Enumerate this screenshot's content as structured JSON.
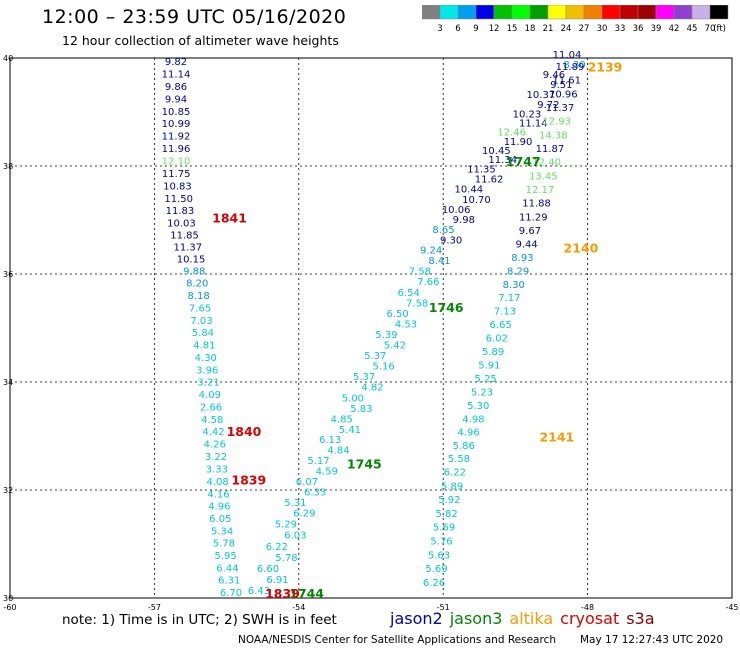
{
  "title": "12:00 – 23:59 UTC 05/16/2020",
  "subtitle": "12 hour collection of altimeter wave heights",
  "colorbar": {
    "unit": "(ft)",
    "colors": [
      "#808080",
      "#00e8e8",
      "#00a0f0",
      "#0000e8",
      "#00c000",
      "#00ff00",
      "#00a000",
      "#ffff00",
      "#f0c000",
      "#f08000",
      "#ff0000",
      "#c00000",
      "#a00000",
      "#ff00ff",
      "#9040d0",
      "#c8b0e8",
      "#000000"
    ],
    "labels": [
      "3",
      "6",
      "9",
      "12",
      "15",
      "18",
      "21",
      "24",
      "27",
      "30",
      "33",
      "36",
      "39",
      "42",
      "45",
      "70"
    ]
  },
  "axes": {
    "x_ticks": [
      "-60",
      "-57",
      "-54",
      "-51",
      "-48",
      "-45"
    ],
    "y_ticks": [
      "40",
      "38",
      "36",
      "34",
      "32",
      "30"
    ],
    "lon_range": [
      -60,
      -45
    ],
    "lat_range": [
      30,
      40
    ],
    "grid": "dashed"
  },
  "satellite_colors": {
    "jason2": "#0000cc",
    "jason3": "#008800",
    "altika": "#ff9900",
    "cryosat": "#dd0000",
    "s3a": "#880000"
  },
  "height_colors": {
    "cyan": "#00c8dc",
    "blue": "#0096e6",
    "navy": "#0000a0",
    "lgreen": "#66e066"
  },
  "tracks": [
    {
      "values": [
        [
          "9.82",
          "navy"
        ],
        [
          "11.14",
          "navy"
        ],
        [
          "9.86",
          "navy"
        ],
        [
          "9.94",
          "navy"
        ],
        [
          "10.85",
          "navy"
        ],
        [
          "10.99",
          "navy"
        ],
        [
          "11.92",
          "navy"
        ],
        [
          "11.96",
          "navy"
        ],
        [
          "12.10",
          "lgreen"
        ],
        [
          "11.75",
          "navy"
        ],
        [
          "10.83",
          "navy"
        ],
        [
          "11.50",
          "navy"
        ],
        [
          "11.83",
          "navy"
        ],
        [
          "10.03",
          "navy"
        ],
        [
          "11.85",
          "navy"
        ],
        [
          "11.37",
          "navy"
        ],
        [
          "10.15",
          "navy"
        ],
        [
          "9.88",
          "blue"
        ],
        [
          "8.20",
          "blue"
        ],
        [
          "8.18",
          "blue"
        ],
        [
          "7.65",
          "cyan"
        ],
        [
          "7.03",
          "cyan"
        ],
        [
          "5.84",
          "cyan"
        ],
        [
          "4.81",
          "cyan"
        ],
        [
          "4.30",
          "cyan"
        ],
        [
          "3.96",
          "cyan"
        ],
        [
          "3.21",
          "cyan"
        ],
        [
          "4.09",
          "cyan"
        ],
        [
          "2.66",
          "cyan"
        ],
        [
          "4.58",
          "cyan"
        ],
        [
          "4.42",
          "cyan"
        ],
        [
          "4.26",
          "cyan"
        ],
        [
          "3.22",
          "cyan"
        ],
        [
          "3.33",
          "cyan"
        ],
        [
          "4.08",
          "cyan"
        ],
        [
          "4.16",
          "cyan"
        ],
        [
          "4.96",
          "cyan"
        ],
        [
          "6.05",
          "cyan"
        ],
        [
          "5.34",
          "cyan"
        ],
        [
          "5.78",
          "cyan"
        ],
        [
          "5.95",
          "cyan"
        ],
        [
          "6.44",
          "cyan"
        ],
        [
          "6.31",
          "cyan"
        ],
        [
          "6.70",
          "cyan"
        ]
      ]
    },
    {
      "values": [
        [
          "6.43",
          "cyan"
        ],
        [
          "6.91",
          "cyan"
        ],
        [
          "6.60",
          "cyan"
        ],
        [
          "5.78",
          "cyan"
        ],
        [
          "6.22",
          "cyan"
        ],
        [
          "6.03",
          "cyan"
        ],
        [
          "5.29",
          "cyan"
        ],
        [
          "6.29",
          "cyan"
        ],
        [
          "5.31",
          "cyan"
        ],
        [
          "6.33",
          "cyan"
        ],
        [
          "6.07",
          "cyan"
        ],
        [
          "4.59",
          "cyan"
        ],
        [
          "5.17",
          "cyan"
        ],
        [
          "4.84",
          "cyan"
        ],
        [
          "6.13",
          "cyan"
        ],
        [
          "5.41",
          "cyan"
        ],
        [
          "4.85",
          "cyan"
        ],
        [
          "5.83",
          "cyan"
        ],
        [
          "5.00",
          "cyan"
        ],
        [
          "4.82",
          "cyan"
        ],
        [
          "5.37",
          "cyan"
        ],
        [
          "5.16",
          "cyan"
        ],
        [
          "5.37",
          "cyan"
        ],
        [
          "5.42",
          "cyan"
        ],
        [
          "5.39",
          "cyan"
        ],
        [
          "4.53",
          "cyan"
        ],
        [
          "6.50",
          "cyan"
        ],
        [
          "7.58",
          "cyan"
        ],
        [
          "6.54",
          "cyan"
        ],
        [
          "7.66",
          "cyan"
        ],
        [
          "7.58",
          "cyan"
        ],
        [
          "8.41",
          "blue"
        ],
        [
          "9.24",
          "blue"
        ],
        [
          "9.30",
          "navy"
        ],
        [
          "8.65",
          "blue"
        ],
        [
          "9.98",
          "navy"
        ],
        [
          "10.06",
          "navy"
        ],
        [
          "10.70",
          "navy"
        ],
        [
          "10.44",
          "navy"
        ],
        [
          "11.62",
          "navy"
        ],
        [
          "11.35",
          "navy"
        ],
        [
          "11.34",
          "navy"
        ],
        [
          "10.45",
          "navy"
        ],
        [
          "11.90",
          "navy"
        ],
        [
          "12.46",
          "lgreen"
        ],
        [
          "11.14",
          "navy"
        ],
        [
          "10.23",
          "navy"
        ],
        [
          "9.72",
          "navy"
        ],
        [
          "10.37",
          "navy"
        ],
        [
          "9.51",
          "navy"
        ],
        [
          "9.46",
          "navy"
        ],
        [
          "8.30",
          "blue"
        ],
        [
          "11.04",
          "navy"
        ]
      ]
    },
    {
      "values": [
        [
          "11.89",
          "navy"
        ],
        [
          "11.61",
          "navy"
        ],
        [
          "10.96",
          "navy"
        ],
        [
          "11.37",
          "navy"
        ],
        [
          "12.93",
          "lgreen"
        ],
        [
          "14.38",
          "lgreen"
        ],
        [
          "11.87",
          "navy"
        ],
        [
          "12.40",
          "lgreen"
        ],
        [
          "13.45",
          "lgreen"
        ],
        [
          "12.17",
          "lgreen"
        ],
        [
          "11.88",
          "navy"
        ],
        [
          "11.29",
          "navy"
        ],
        [
          "9.67",
          "navy"
        ],
        [
          "9.44",
          "navy"
        ],
        [
          "8.93",
          "blue"
        ],
        [
          "8.29",
          "blue"
        ],
        [
          "8.30",
          "blue"
        ],
        [
          "7.17",
          "cyan"
        ],
        [
          "7.13",
          "cyan"
        ],
        [
          "6.65",
          "cyan"
        ],
        [
          "6.02",
          "cyan"
        ],
        [
          "5.89",
          "cyan"
        ],
        [
          "5.91",
          "cyan"
        ],
        [
          "5.25",
          "cyan"
        ],
        [
          "5.23",
          "cyan"
        ],
        [
          "5.30",
          "cyan"
        ],
        [
          "4.98",
          "cyan"
        ],
        [
          "4.96",
          "cyan"
        ],
        [
          "5.86",
          "cyan"
        ],
        [
          "5.58",
          "cyan"
        ],
        [
          "6.22",
          "cyan"
        ],
        [
          "5.89",
          "cyan"
        ],
        [
          "5.92",
          "cyan"
        ],
        [
          "5.82",
          "cyan"
        ],
        [
          "5.69",
          "cyan"
        ],
        [
          "5.76",
          "cyan"
        ],
        [
          "5.63",
          "cyan"
        ],
        [
          "5.69",
          "cyan"
        ],
        [
          "6.26",
          "cyan"
        ]
      ]
    }
  ],
  "time_labels": [
    {
      "text": "2139",
      "sat": "altika",
      "lon": -48.0,
      "lat": 39.75
    },
    {
      "text": "2140",
      "sat": "altika",
      "lon": -48.5,
      "lat": 36.4
    },
    {
      "text": "2141",
      "sat": "altika",
      "lon": -49.0,
      "lat": 32.9
    },
    {
      "text": "1747",
      "sat": "jason3",
      "lon": -49.7,
      "lat": 38.0
    },
    {
      "text": "1746",
      "sat": "jason3",
      "lon": -51.3,
      "lat": 35.3
    },
    {
      "text": "1745",
      "sat": "jason3",
      "lon": -53.0,
      "lat": 32.4
    },
    {
      "text": "1744",
      "sat": "jason3",
      "lon": -54.2,
      "lat": 30.0
    },
    {
      "text": "1841",
      "sat": "cryosat",
      "lon": -55.8,
      "lat": 36.95
    },
    {
      "text": "1840",
      "sat": "cryosat",
      "lon": -55.5,
      "lat": 33.0
    },
    {
      "text": "1839",
      "sat": "cryosat",
      "lon": -55.4,
      "lat": 32.1
    },
    {
      "text": "1839",
      "sat": "cryosat",
      "lon": -54.7,
      "lat": 30.0
    }
  ],
  "note": "note: 1) Time is in UTC; 2) SWH is in feet",
  "legend": [
    {
      "label": "jason2",
      "sat": "jason2"
    },
    {
      "label": "jason3",
      "sat": "jason3"
    },
    {
      "label": "altika",
      "sat": "altika"
    },
    {
      "label": "cryosat",
      "sat": "cryosat"
    },
    {
      "label": "s3a",
      "sat": "s3a"
    }
  ],
  "footer": "NOAA/NESDIS Center for Satellite Applications and Research",
  "footer_time": "May 17 12:27:43 UTC 2020"
}
